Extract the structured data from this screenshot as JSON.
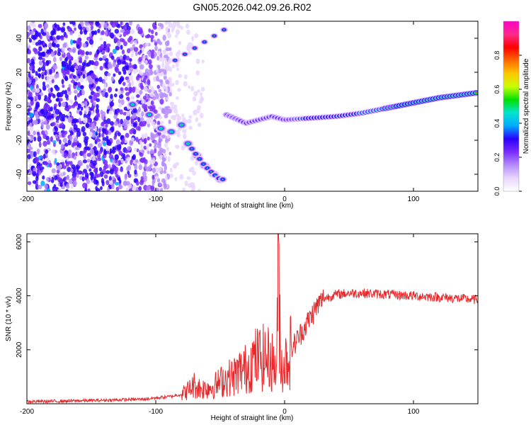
{
  "figure": {
    "title": "GN05.2026.042.09.26.R02"
  },
  "colors": {
    "snr_line": "#e8282b",
    "colormap": [
      "#ffffff",
      "#e8d6ff",
      "#b58cff",
      "#7a2cff",
      "#2a00ff",
      "#00aaff",
      "#00e5d0",
      "#00e000",
      "#c8ff00",
      "#ffc800",
      "#ff6a00",
      "#ff0000",
      "#ff2a8a",
      "#ff00c8"
    ]
  },
  "chart_data": [
    {
      "type": "heatmap",
      "xlabel": "Height of straight line (km)",
      "ylabel": "Frequency (Hz)",
      "xlim": [
        -200,
        150
      ],
      "ylim": [
        -50,
        50
      ],
      "xticks": [
        -200,
        -100,
        0,
        100
      ],
      "yticks": [
        -40,
        -20,
        0,
        20,
        40
      ],
      "colorbar": {
        "label": "Normalized spectral amplitude",
        "range": [
          0,
          1
        ],
        "ticks": [
          "0.0",
          "0.2",
          "0.4",
          "0.6",
          "0.8"
        ]
      },
      "features": {
        "noise_region_x": [
          -200,
          -88
        ],
        "receding_branch": {
          "x": [
            -118,
            -105,
            -96,
            -88,
            -80,
            -75,
            -68,
            -62,
            -55,
            -50
          ],
          "y": [
            1,
            -5,
            -13,
            -15,
            -11,
            -22,
            -29,
            -35,
            -40,
            -43
          ]
        },
        "approaching_branch": {
          "x": [
            -85,
            -47
          ],
          "y": [
            27,
            45
          ]
        },
        "doppler_trace": {
          "x": [
            -45,
            -30,
            -20,
            -10,
            0,
            20,
            40,
            60,
            80,
            100,
            120,
            150
          ],
          "y": [
            -5,
            -10,
            -8,
            -6,
            -8,
            -7,
            -6,
            -4,
            -1,
            2,
            5,
            8
          ]
        }
      }
    },
    {
      "type": "line",
      "xlabel": "Height of straight line (km)",
      "ylabel": "SNR (10 * v/v)",
      "xlim": [
        -200,
        150
      ],
      "ylim": [
        0,
        6300
      ],
      "xticks": [
        -200,
        -100,
        0,
        100
      ],
      "yticks": [
        2000,
        4000,
        6000
      ],
      "grid": false,
      "series": [
        {
          "x": [
            -200,
            -170,
            -140,
            -110,
            -90,
            -80,
            -75,
            -70,
            -65,
            -60,
            -55,
            -50,
            -45,
            -40,
            -35,
            -30,
            -25,
            -20,
            -15,
            -10,
            -6,
            -5,
            -3,
            0,
            5,
            10,
            15,
            20,
            25,
            30,
            40,
            50,
            60,
            80,
            100,
            120,
            150
          ],
          "y": [
            80,
            100,
            130,
            170,
            260,
            350,
            500,
            700,
            550,
            600,
            650,
            800,
            950,
            1000,
            1200,
            1300,
            1600,
            1700,
            1700,
            1600,
            1200,
            6300,
            1400,
            1500,
            2000,
            2400,
            2800,
            3200,
            3600,
            3900,
            4050,
            4100,
            4100,
            4050,
            4000,
            3950,
            3850
          ]
        }
      ]
    }
  ]
}
